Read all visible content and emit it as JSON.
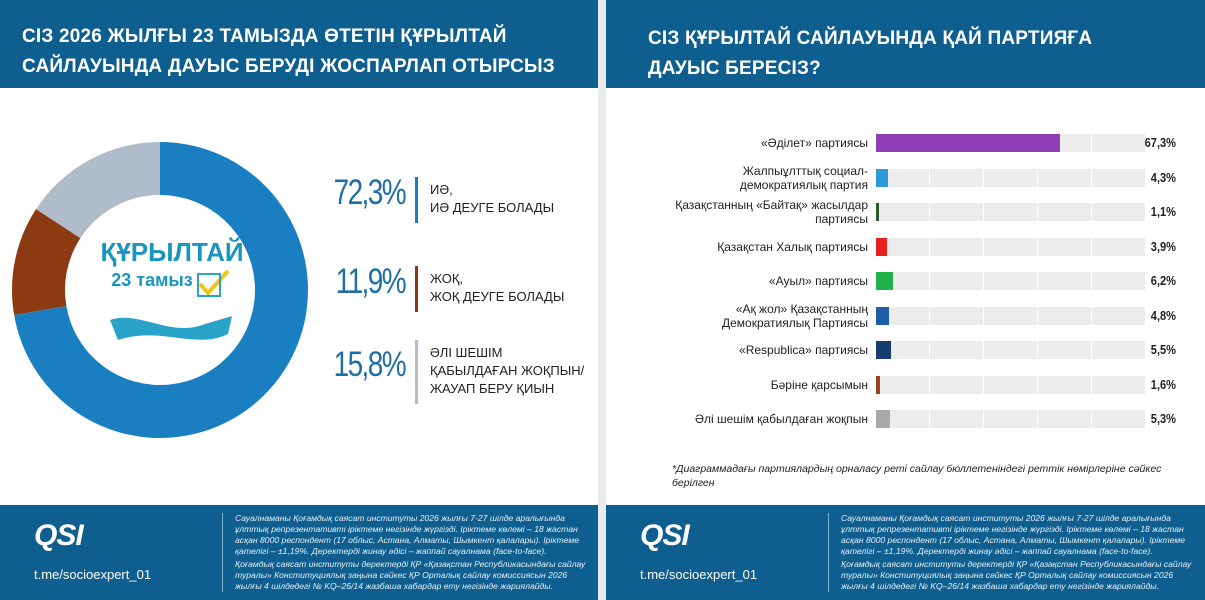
{
  "chart_data": [
    {
      "type": "pie",
      "title": "СІЗ 2026 ЖЫЛҒЫ 23 ТАМЫЗДА ӨТЕТІН ҚҰРЫЛТАЙ\nСАЙЛАУЫНДА ДАУЫС БЕРУДІ ЖОСПАРЛАП ОТЫРСЫЗ БА?",
      "categories": [
        "ИӘ,\nИӘ ДЕУГЕ БОЛАДЫ",
        "ЖОҚ,\nЖОҚ ДЕУГЕ БОЛАДЫ",
        "ӘЛІ ШЕШІМ\nҚАБЫЛДАҒАН ЖОҚПЫН/\nЖАУАП БЕРУ ҚИЫН"
      ],
      "values": [
        72.3,
        11.9,
        15.8
      ],
      "value_labels": [
        "72,3%",
        "11,9%",
        "15,8%"
      ],
      "colors": [
        "#1a7fc0",
        "#8b3a12",
        "#b1bccb"
      ],
      "donut": true
    },
    {
      "type": "bar",
      "orientation": "horizontal",
      "title": "СІЗ ҚҰРЫЛТАЙ САЙЛАУЫНДА ҚАЙ ПАРТИЯҒА\nДАУЫС БЕРЕСІЗ?",
      "categories": [
        "«Әділет» партиясы",
        "Жалпыұлттық социал-\nдемократиялық партия",
        "Қазақстанның «Байтақ» жасылдар\nпартиясы",
        "Қазақстан Халық партиясы",
        "«Ауыл» партиясы",
        "«Ақ жол» Қазақстанның\nДемократиялық Партиясы",
        "«Respublica» партиясы",
        "Бәріне қарсымын",
        "Әлі шешім қабылдаған жоқпын"
      ],
      "values": [
        67.3,
        4.3,
        1.1,
        3.9,
        6.2,
        4.8,
        5.5,
        1.6,
        5.3
      ],
      "value_labels": [
        "67,3%",
        "4,3%",
        "1,1%",
        "3,9%",
        "6,2%",
        "4,8%",
        "5,5%",
        "1,6%",
        "5,3%"
      ],
      "colors": [
        "#8e3fb5",
        "#2f9ad8",
        "#2b5a2b",
        "#e82020",
        "#22b04b",
        "#1f5fa8",
        "#153d6e",
        "#a0401a",
        "#a9a9a9"
      ],
      "note": "*Диаграммадағы партиялардың орналасу реті сайлау бюллетеніндегі реттік нөмірлеріне сәйкес берілген"
    }
  ],
  "logo": {
    "title": "ҚҰРЫЛТАЙ",
    "subtitle": "23 тамыз"
  },
  "footer": {
    "brand": "QSI",
    "link": "t.me/socioexpert_01",
    "text": [
      "Сауалнаманы Қоғамдық саясат институты 2026 жылғы 7-27 шілде аралығында ұлттық репрезентативті іріктеме негізінде жүргізді. Іріктеме көлемі – 18 жастан асқан 8000 респондент (17 облыс, Астана, Алматы, Шымкент қалалары). Іріктеме қателігі – ±1,19%. Деректерді жинау әдісі – жаппай сауалнама (face-to-face).",
      "Қоғамдық саясат институты деректерді ҚР «Қазақстан Республикасындағы сайлау туралы» Конституциялық заңына сәйкес ҚР Орталық сайлау комиссиясын 2026 жылғы 4 шілдедегі № KQ–26/14 жазбаша хабардар ету негізінде жариялайды."
    ]
  }
}
